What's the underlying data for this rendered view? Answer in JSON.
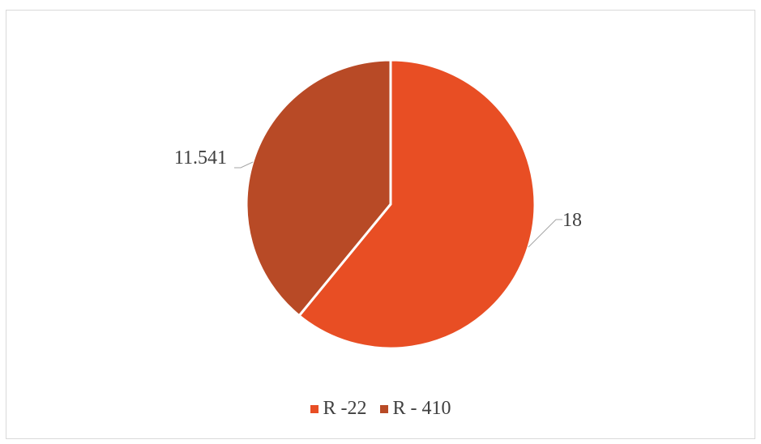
{
  "chart_data": {
    "type": "pie",
    "categories": [
      "R -22",
      "R - 410"
    ],
    "values": [
      18,
      11.541
    ],
    "data_labels": [
      "18",
      "11.541"
    ],
    "colors": [
      "#e84e24",
      "#b84a26"
    ],
    "start_angle_deg": 0,
    "legend_position": "bottom",
    "title": ""
  }
}
